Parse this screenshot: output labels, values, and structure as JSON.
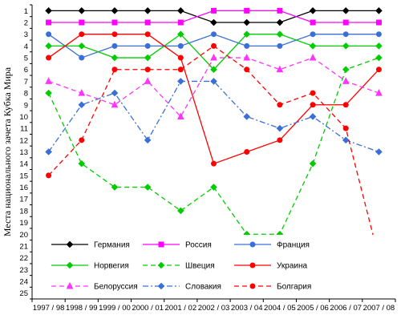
{
  "chart_data": {
    "type": "line",
    "title": "",
    "xlabel": "",
    "ylabel": "Места национального зачета Кубка Мира",
    "ylim": [
      1,
      25
    ],
    "y_inverted": true,
    "grid": false,
    "legend_placement": "bottom-center, inside plot",
    "categories": [
      "1997 / 98",
      "1998 / 99",
      "1999 / 00",
      "2000 / 01",
      "2001 / 02",
      "2002 / 03",
      "2003 / 04",
      "2004 / 05",
      "2005 / 06",
      "2006 / 07",
      "2007 / 08"
    ],
    "y_ticks": [
      1,
      2,
      3,
      4,
      5,
      6,
      7,
      8,
      9,
      10,
      11,
      12,
      13,
      14,
      15,
      16,
      17,
      18,
      19,
      20,
      21,
      22,
      23,
      24,
      25
    ],
    "series": [
      {
        "name": "Германия",
        "color": "#000000",
        "dash": "solid",
        "marker": "diamond",
        "values": [
          1,
          1,
          1,
          1,
          1,
          2,
          2,
          2,
          1,
          1,
          1
        ]
      },
      {
        "name": "Россия",
        "color": "#ff00ff",
        "dash": "solid",
        "marker": "square",
        "values": [
          2,
          2,
          2,
          2,
          2,
          1,
          1,
          1,
          2,
          2,
          2
        ]
      },
      {
        "name": "Франция",
        "color": "#3a6fd8",
        "dash": "solid",
        "marker": "circle",
        "values": [
          3,
          5,
          4,
          4,
          4,
          3,
          4,
          4,
          3,
          3,
          3
        ]
      },
      {
        "name": "Норвегия",
        "color": "#00cc00",
        "dash": "solid",
        "marker": "diamond",
        "values": [
          4,
          4,
          5,
          5,
          3,
          6,
          3,
          3,
          4,
          4,
          4
        ]
      },
      {
        "name": "Швеция",
        "color": "#00cc00",
        "dash": "dash",
        "marker": "diamond",
        "values": [
          8,
          14,
          16,
          16,
          18,
          16,
          20,
          20,
          14,
          6,
          5
        ]
      },
      {
        "name": "Украина",
        "color": "#ff0000",
        "dash": "solid",
        "marker": "circle",
        "values": [
          5,
          3,
          3,
          3,
          5,
          14,
          13,
          12,
          9,
          9,
          6
        ]
      },
      {
        "name": "Белоруссия",
        "color": "#ff33ff",
        "dash": "dash",
        "marker": "triangle",
        "values": [
          7,
          8,
          9,
          7,
          10,
          5,
          5,
          6,
          5,
          7,
          8
        ]
      },
      {
        "name": "Словакия",
        "color": "#3a6fd8",
        "dash": "dashdot",
        "marker": "diamond",
        "values": [
          13,
          9,
          8,
          12,
          7,
          7,
          10,
          11,
          10,
          12,
          13
        ]
      },
      {
        "name": "Болгария",
        "color": "#ff0000",
        "dash": "dash",
        "marker": "circle",
        "values": [
          15,
          12,
          6,
          6,
          6,
          4,
          6,
          9,
          8,
          11,
          22
        ]
      }
    ]
  }
}
